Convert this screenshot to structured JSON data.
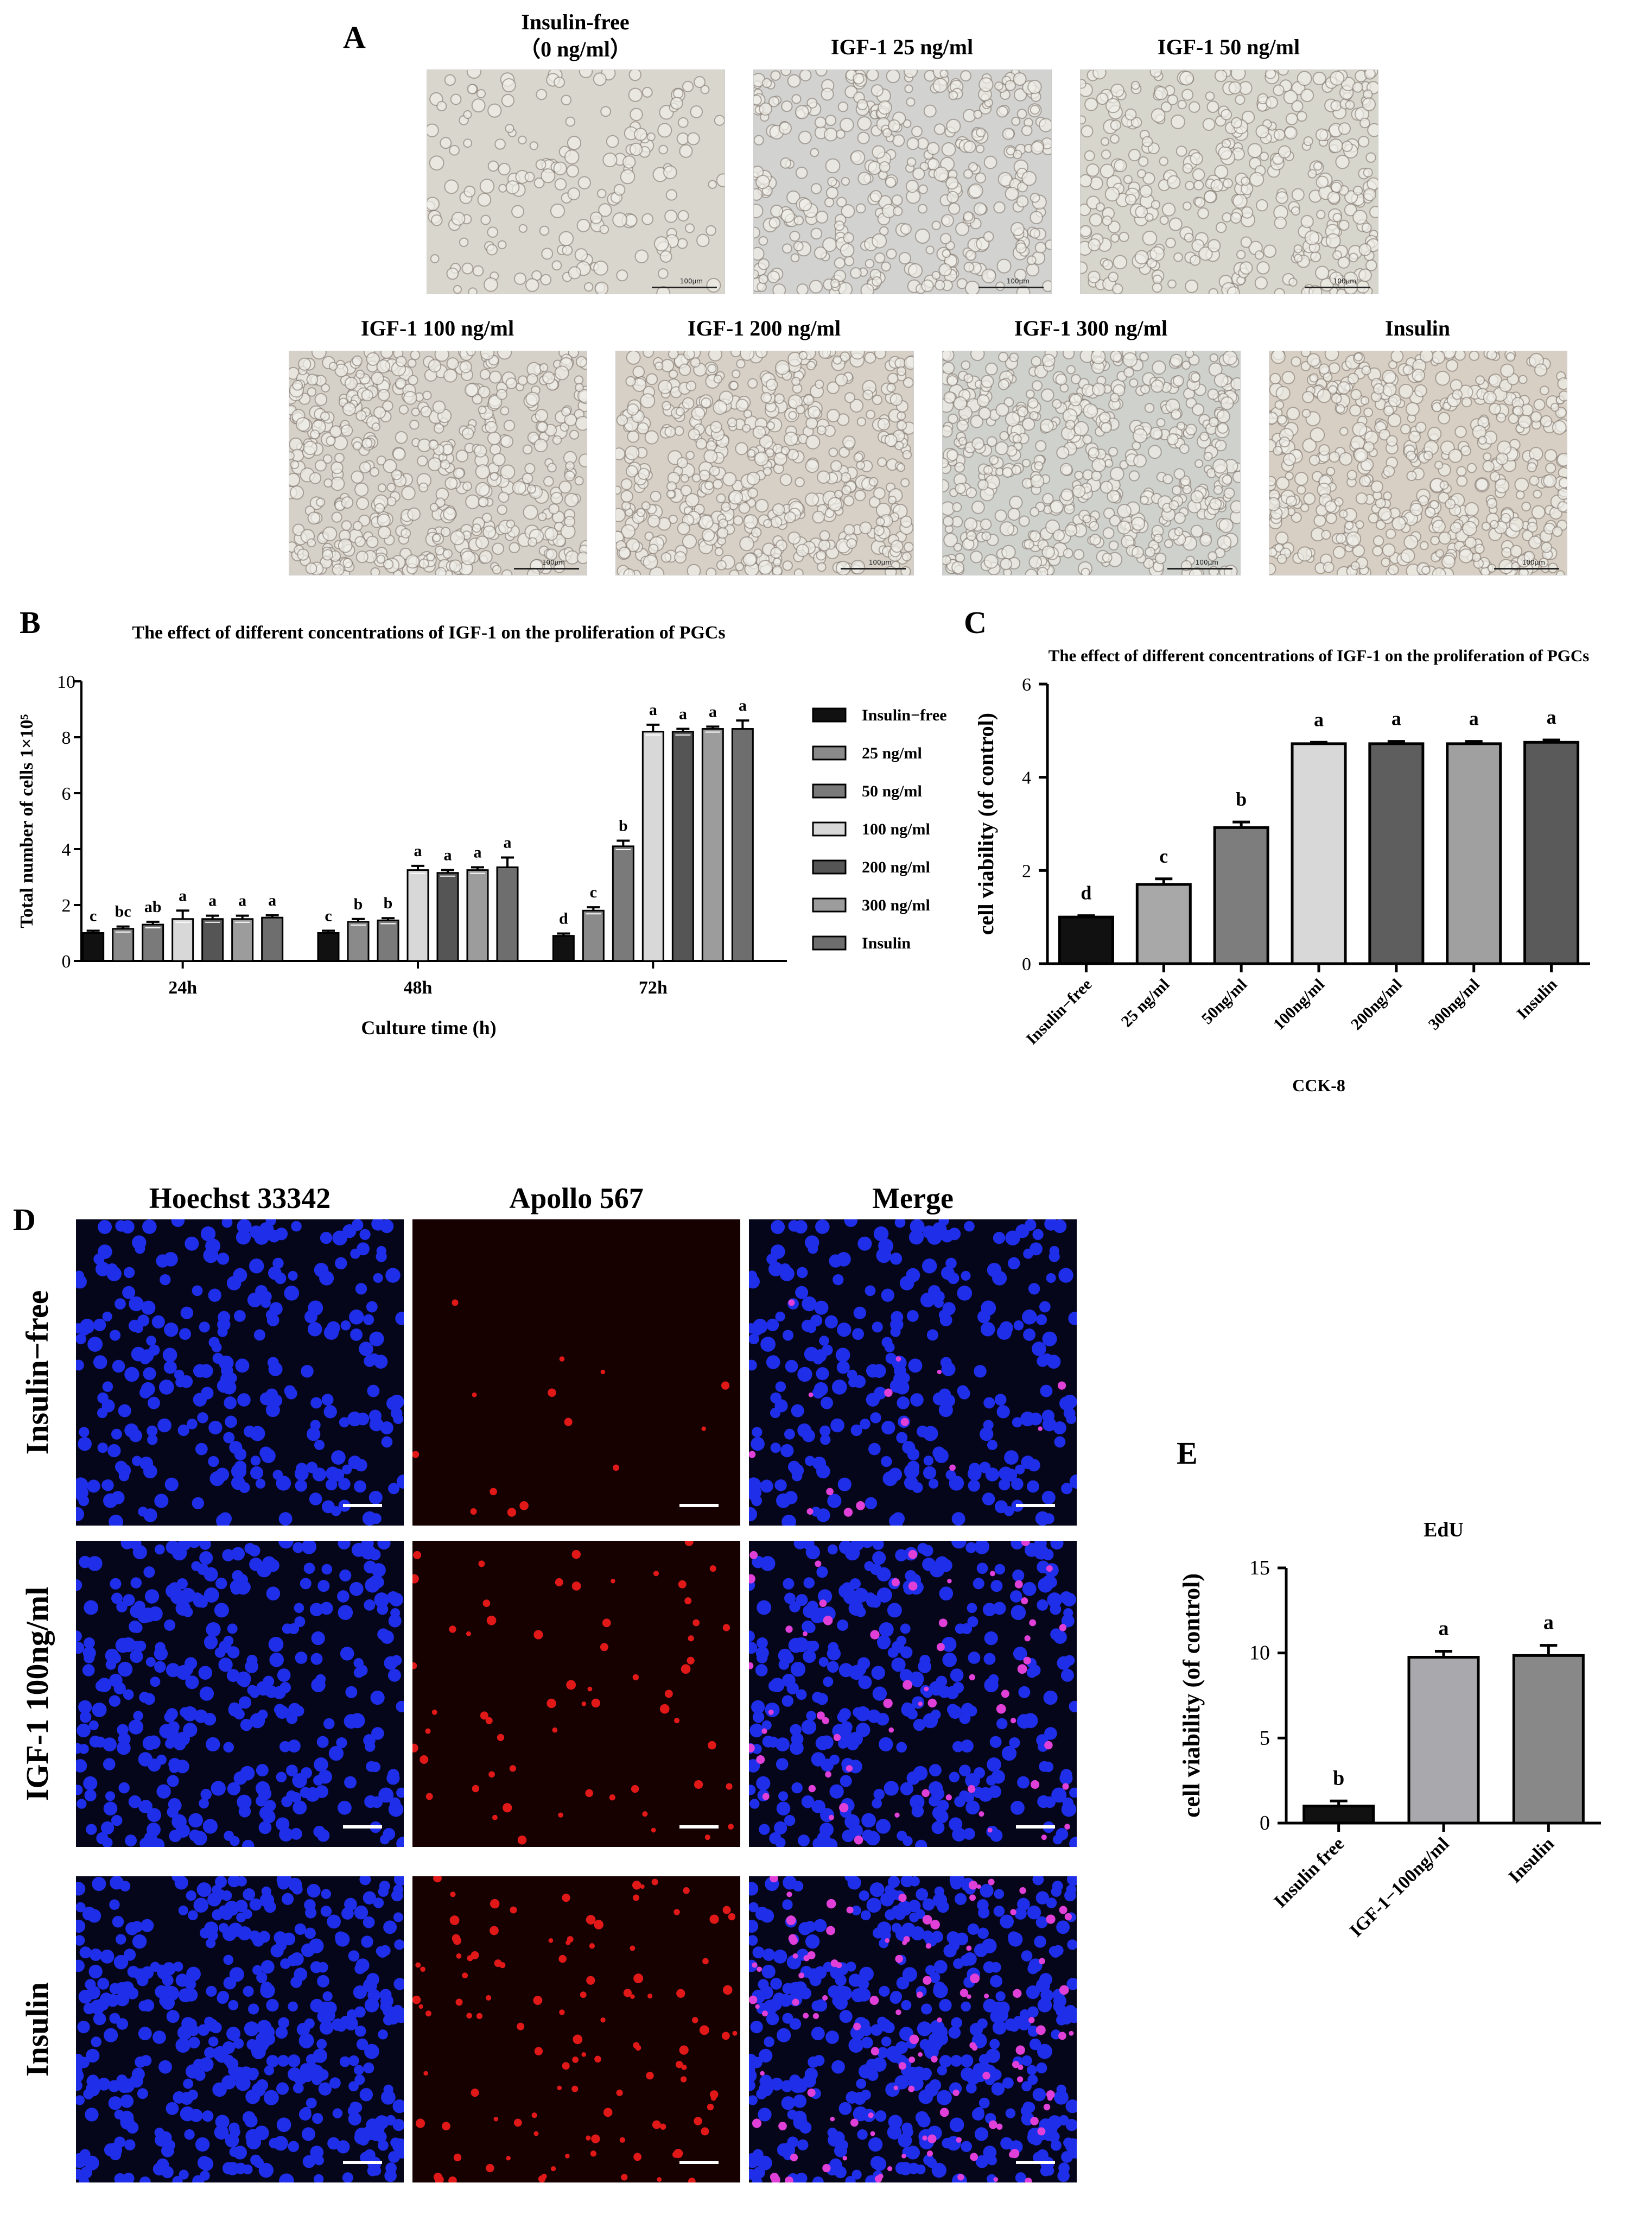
{
  "panel_labels": {
    "a": "A",
    "b": "B",
    "c": "C",
    "d": "D",
    "e": "E"
  },
  "panel_a": {
    "images": [
      {
        "title": "Insulin-free\n（0 ng/ml）",
        "scale": "100μm",
        "tint": "#d9d6ce"
      },
      {
        "title": "IGF-1 25 ng/ml",
        "scale": "100μm",
        "tint": "#d2d2d0"
      },
      {
        "title": "IGF-1 50 ng/ml",
        "scale": "100μm",
        "tint": "#d7d6cd"
      },
      {
        "title": "IGF-1 100 ng/ml",
        "scale": "100μm",
        "tint": "#d6d1c8"
      },
      {
        "title": "IGF-1 200 ng/ml",
        "scale": "100μm",
        "tint": "#d6d0c7"
      },
      {
        "title": "IGF-1 300 ng/ml",
        "scale": "100μm",
        "tint": "#cfd1cd"
      },
      {
        "title": "Insulin",
        "scale": "100μm",
        "tint": "#d8cfc4"
      }
    ]
  },
  "panel_d": {
    "col_titles": [
      "Hoechst 33342",
      "Apollo 567",
      "Merge"
    ],
    "row_labels": [
      "Insulin−free",
      "IGF-1 100ng/ml",
      "Insulin"
    ]
  },
  "chart_data": [
    {
      "id": "B",
      "type": "bar",
      "title": "The effect of different concentrations of IGF-1 on the proliferation of PGCs",
      "xlabel": "Culture time (h)",
      "ylabel": "Total number of cells 1×10⁵",
      "ylim": [
        0,
        10
      ],
      "yticks": [
        0,
        2,
        4,
        6,
        8,
        10
      ],
      "categories": [
        "24h",
        "48h",
        "72h"
      ],
      "legend_position": "right",
      "series": [
        {
          "name": "Insulin−free",
          "color": "#111111",
          "values": [
            1.0,
            1.0,
            0.9
          ],
          "errors": [
            0.08,
            0.08,
            0.08
          ],
          "letters": [
            "c",
            "c",
            "d"
          ]
        },
        {
          "name": "25 ng/ml",
          "color": "#8a8a8a",
          "values": [
            1.15,
            1.4,
            1.8
          ],
          "errors": [
            0.08,
            0.1,
            0.12
          ],
          "letters": [
            "bc",
            "b",
            "c"
          ]
        },
        {
          "name": "50 ng/ml",
          "color": "#7a7a7a",
          "values": [
            1.3,
            1.45,
            4.1
          ],
          "errors": [
            0.1,
            0.08,
            0.2
          ],
          "letters": [
            "ab",
            "b",
            "b"
          ]
        },
        {
          "name": "100 ng/ml",
          "color": "#d8d8d8",
          "values": [
            1.5,
            3.25,
            8.2
          ],
          "errors": [
            0.3,
            0.15,
            0.25
          ],
          "letters": [
            "a",
            "a",
            "a"
          ]
        },
        {
          "name": "200 ng/ml",
          "color": "#555555",
          "values": [
            1.5,
            3.15,
            8.2
          ],
          "errors": [
            0.12,
            0.1,
            0.1
          ],
          "letters": [
            "a",
            "a",
            "a"
          ]
        },
        {
          "name": "300 ng/ml",
          "color": "#9c9c9c",
          "values": [
            1.5,
            3.25,
            8.3
          ],
          "errors": [
            0.12,
            0.1,
            0.08
          ],
          "letters": [
            "a",
            "a",
            "a"
          ]
        },
        {
          "name": "Insulin",
          "color": "#6e6e6e",
          "values": [
            1.55,
            3.35,
            8.3
          ],
          "errors": [
            0.08,
            0.35,
            0.3
          ],
          "letters": [
            "a",
            "a",
            "a"
          ]
        }
      ]
    },
    {
      "id": "C",
      "type": "bar",
      "title": "The effect of different concentrations of IGF-1 on the proliferation of PGCs",
      "xlabel": "CCK-8",
      "ylabel": "cell viability (of control)",
      "ylim": [
        0,
        6
      ],
      "yticks": [
        0,
        2,
        4,
        6
      ],
      "categories": [
        "Insulin−free",
        "25 ng/ml",
        "50ng/ml",
        "100ng/ml",
        "200ng/ml",
        "300ng/ml",
        "Insulin"
      ],
      "values": [
        1.0,
        1.7,
        2.92,
        4.72,
        4.72,
        4.72,
        4.75
      ],
      "errors": [
        0.03,
        0.12,
        0.12,
        0.03,
        0.05,
        0.05,
        0.05
      ],
      "letters": [
        "d",
        "c",
        "b",
        "a",
        "a",
        "a",
        "a"
      ],
      "colors": [
        "#111111",
        "#a8a8a8",
        "#7d7d7d",
        "#d8d8d8",
        "#5e5e5e",
        "#a0a0a0",
        "#5a5a5a"
      ]
    },
    {
      "id": "E",
      "type": "bar",
      "title": "EdU",
      "xlabel": "",
      "ylabel": "cell viability (of control)",
      "ylim": [
        0,
        15
      ],
      "yticks": [
        0,
        5,
        10,
        15
      ],
      "categories": [
        "Insulin free",
        "IGF-1−100ng/ml",
        "Insulin"
      ],
      "values": [
        1.0,
        9.75,
        9.85
      ],
      "errors": [
        0.3,
        0.35,
        0.6
      ],
      "letters": [
        "b",
        "a",
        "a"
      ],
      "colors": [
        "#111111",
        "#a8a8ad",
        "#888888"
      ]
    }
  ]
}
